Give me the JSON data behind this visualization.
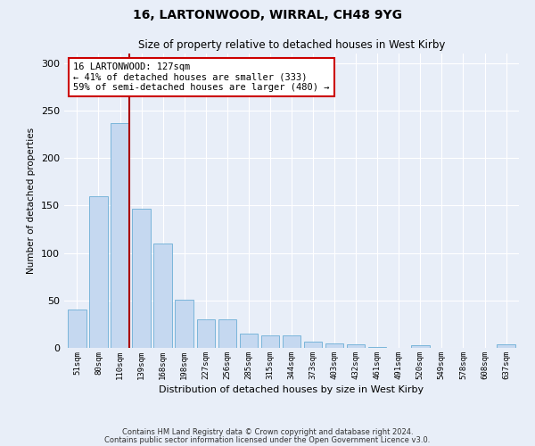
{
  "title1": "16, LARTONWOOD, WIRRAL, CH48 9YG",
  "title2": "Size of property relative to detached houses in West Kirby",
  "xlabel": "Distribution of detached houses by size in West Kirby",
  "ylabel": "Number of detached properties",
  "categories": [
    "51sqm",
    "80sqm",
    "110sqm",
    "139sqm",
    "168sqm",
    "198sqm",
    "227sqm",
    "256sqm",
    "285sqm",
    "315sqm",
    "344sqm",
    "373sqm",
    "403sqm",
    "432sqm",
    "461sqm",
    "491sqm",
    "520sqm",
    "549sqm",
    "578sqm",
    "608sqm",
    "637sqm"
  ],
  "values": [
    40,
    160,
    237,
    147,
    110,
    51,
    30,
    30,
    15,
    13,
    13,
    7,
    5,
    4,
    1,
    0,
    3,
    0,
    0,
    0,
    4
  ],
  "bar_color": "#c5d8f0",
  "bar_edge_color": "#6baed6",
  "vline_color": "#aa0000",
  "vline_x": 2.45,
  "annotation_text": "16 LARTONWOOD: 127sqm\n← 41% of detached houses are smaller (333)\n59% of semi-detached houses are larger (480) →",
  "annotation_box_color": "#ffffff",
  "annotation_box_edge": "#cc0000",
  "ylim": [
    0,
    310
  ],
  "yticks": [
    0,
    50,
    100,
    150,
    200,
    250,
    300
  ],
  "footer1": "Contains HM Land Registry data © Crown copyright and database right 2024.",
  "footer2": "Contains public sector information licensed under the Open Government Licence v3.0.",
  "background_color": "#e8eef8",
  "plot_bg_color": "#e8eef8",
  "grid_color": "#ffffff",
  "title1_fontsize": 10,
  "title2_fontsize": 8.5
}
